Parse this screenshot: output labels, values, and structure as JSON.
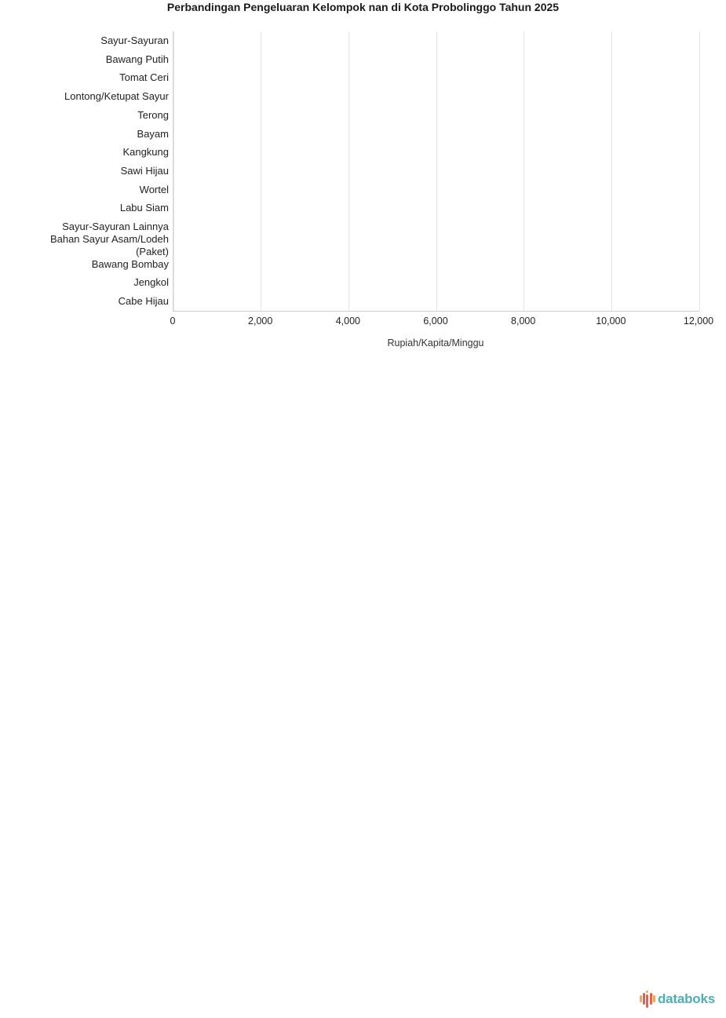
{
  "page": {
    "background": "#ffffff"
  },
  "chart_data": {
    "type": "bar",
    "orientation": "horizontal",
    "title": "Perbandingan Pengeluaran Kelompok nan di Kota Probolinggo Tahun 2025",
    "categories": [
      "Sayur-Sayuran",
      "Bawang Putih",
      "Tomat Ceri",
      "Lontong/Ketupat Sayur",
      "Terong",
      "Bayam",
      "Kangkung",
      "Sawi Hijau",
      "Wortel",
      "Labu Siam",
      "Sayur-Sayuran Lainnya",
      "Bahan Sayur Asam/Lodeh (Paket)",
      "Bawang Bombay",
      "Jengkol",
      "Cabe Hijau"
    ],
    "series": [],
    "bars_visible": false,
    "xlabel": "Rupiah/Kapita/Minggu",
    "ylabel": "",
    "xlim": [
      0,
      12000
    ],
    "x_ticks": [
      0,
      2000,
      4000,
      6000,
      8000,
      10000,
      12000
    ],
    "x_tick_labels": [
      "0",
      "2,000",
      "4,000",
      "6,000",
      "8,000",
      "10,000",
      "12,000"
    ],
    "grid": true,
    "legend": false
  },
  "branding": {
    "logo_text": "databoks",
    "logo_text_color": "#4BB0B5",
    "logo_icon_colors": [
      "#F6A45C",
      "#E8604C"
    ]
  },
  "colors": {
    "grid_line": "#e4e4e4",
    "axis_line": "#cfcfcf",
    "title_text": "#1a1a1a",
    "label_text": "#222222"
  }
}
